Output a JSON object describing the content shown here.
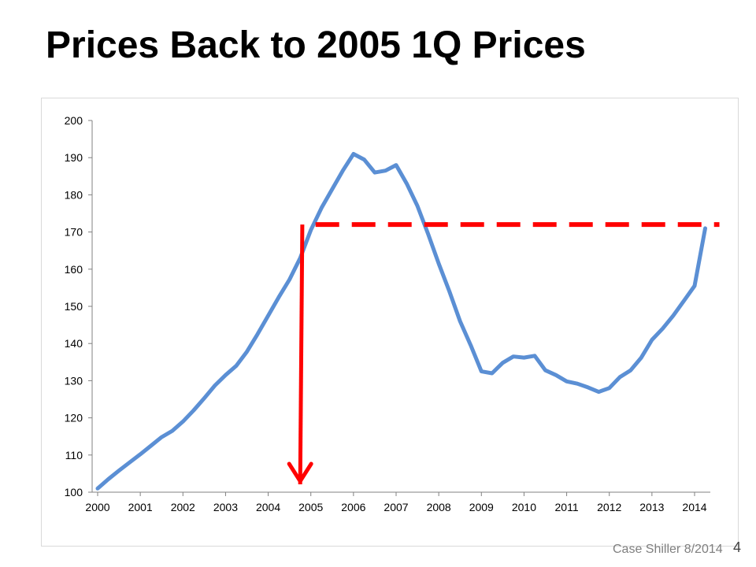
{
  "slide": {
    "title": "Prices Back to 2005 1Q Prices",
    "source": "Case Shiller 8/2014",
    "number": "4"
  },
  "colors": {
    "series": "#5b8fd4",
    "annotation": "#ff0000",
    "axis": "#808080"
  },
  "chart_data": {
    "type": "line",
    "title": "",
    "xlabel": "",
    "ylabel": "",
    "xlim": [
      2000,
      2014.25
    ],
    "ylim": [
      100,
      200
    ],
    "x_ticks": [
      2000,
      2001,
      2002,
      2003,
      2004,
      2005,
      2006,
      2007,
      2008,
      2009,
      2010,
      2011,
      2012,
      2013,
      2014
    ],
    "y_ticks": [
      100,
      110,
      120,
      130,
      140,
      150,
      160,
      170,
      180,
      190,
      200
    ],
    "grid": false,
    "legend": "none",
    "series": [
      {
        "x": [
          2000,
          2000.25,
          2000.5,
          2000.75,
          2001,
          2001.25,
          2001.5,
          2001.75,
          2002,
          2002.25,
          2002.5,
          2002.75,
          2003,
          2003.25,
          2003.5,
          2003.75,
          2004,
          2004.25,
          2004.5,
          2004.75,
          2005,
          2005.25,
          2005.5,
          2005.75,
          2006,
          2006.25,
          2006.5,
          2006.75,
          2007,
          2007.25,
          2007.5,
          2007.75,
          2008,
          2008.25,
          2008.5,
          2008.75,
          2009,
          2009.25,
          2009.5,
          2009.75,
          2010,
          2010.25,
          2010.5,
          2010.75,
          2011,
          2011.25,
          2011.5,
          2011.75,
          2012,
          2012.25,
          2012.5,
          2012.75,
          2013,
          2013.25,
          2013.5,
          2013.75,
          2014,
          2014.25
        ],
        "values": [
          101,
          103.5,
          105.8,
          108,
          110.2,
          112.5,
          114.8,
          116.5,
          119,
          122,
          125.3,
          128.7,
          131.5,
          134,
          137.8,
          142.5,
          147.5,
          152.5,
          157.2,
          163,
          170.5,
          176.5,
          181.5,
          186.5,
          191,
          189.5,
          186,
          186.5,
          188,
          183,
          177,
          169.5,
          161.5,
          154,
          146,
          139.5,
          132.5,
          132,
          134.8,
          136.5,
          136.2,
          136.7,
          132.8,
          131.5,
          129.8,
          129.2,
          128.2,
          127,
          128,
          131,
          132.8,
          136.2,
          141,
          144,
          147.5,
          151.5,
          155.5,
          171
        ]
      }
    ],
    "annotations": {
      "reference_level": 172,
      "reference_x_start": 2005,
      "reference_x_end": 2014.25,
      "arrow_x_top": 2004.8,
      "arrow_x_bottom": 2004.75,
      "arrow_from_y": 172,
      "arrow_to_y": 100
    }
  }
}
